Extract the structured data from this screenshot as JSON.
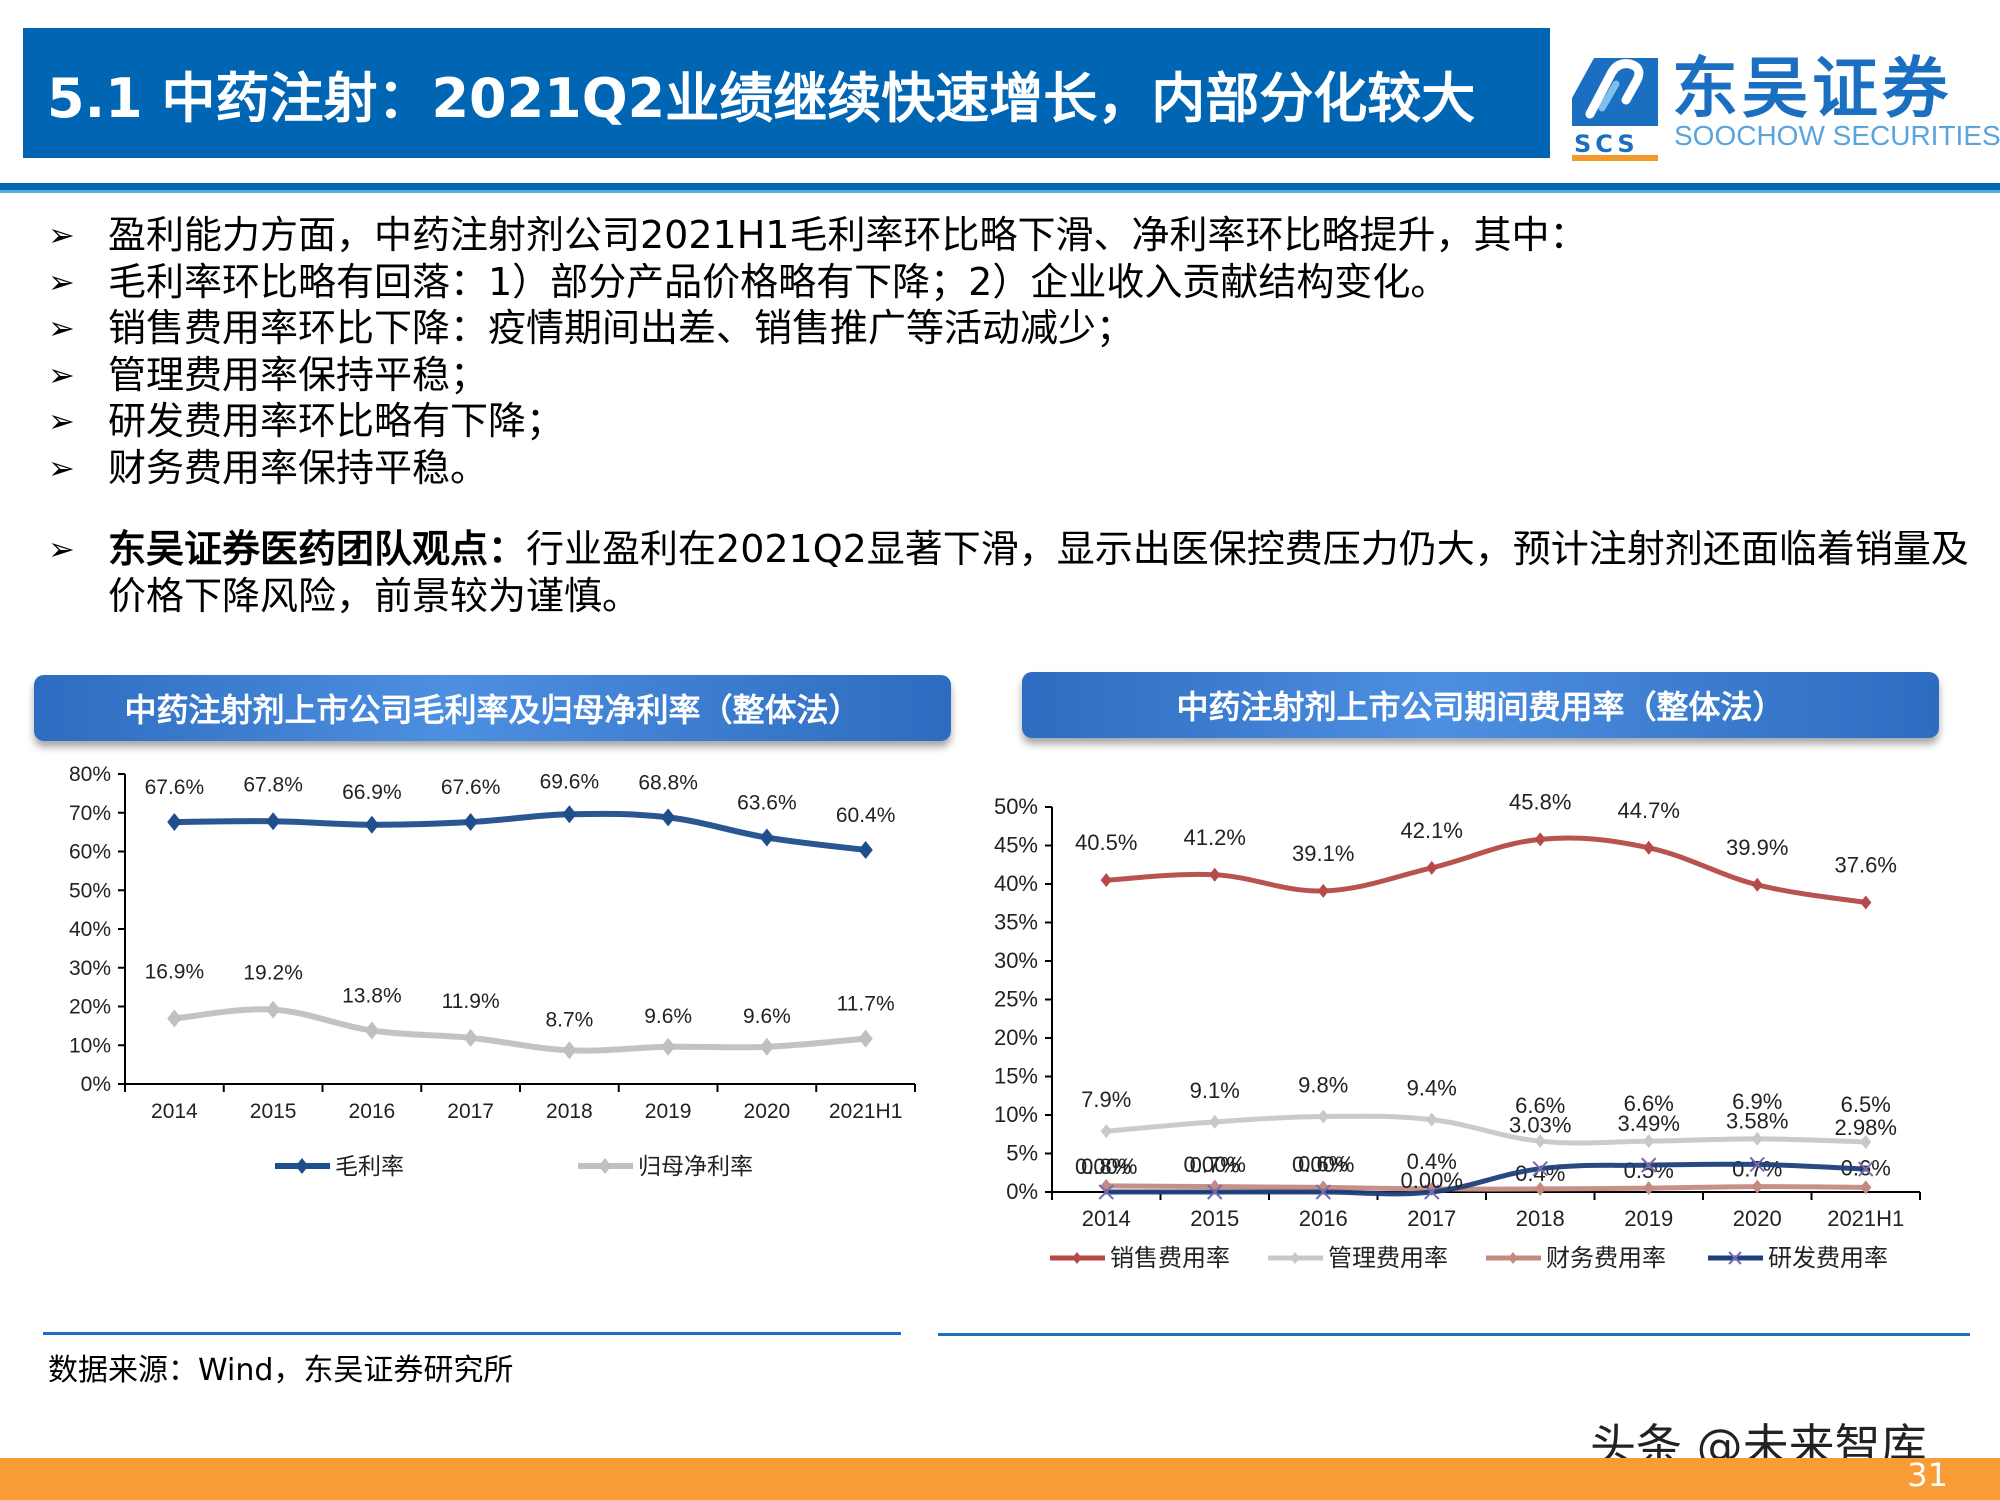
{
  "header": {
    "title": "5.1 中药注射：2021Q2业绩继续快速增长，内部分化较大"
  },
  "logo": {
    "mark_text": "SCS",
    "name_cn": "东吴证券",
    "name_en": "SOOCHOW SECURITIES",
    "brand_color": "#1b6fc0",
    "accent_color": "#f39a2c"
  },
  "bullets": [
    {
      "text": "盈利能力方面，中药注射剂公司2021H1毛利率环比略下滑、净利率环比略提升，其中："
    },
    {
      "text": "毛利率环比略有回落：1）部分产品价格略有下降；2）企业收入贡献结构变化。"
    },
    {
      "text": "销售费用率环比下降：疫情期间出差、销售推广等活动减少；"
    },
    {
      "text": "管理费用率保持平稳；"
    },
    {
      "text": "研发费用率环比略有下降；"
    },
    {
      "text": "财务费用率保持平稳。"
    }
  ],
  "view": {
    "label": "东吴证券医药团队观点：",
    "text": "行业盈利在2021Q2显著下滑，显示出医保控费压力仍大，预计注射剂还面临着销量及价格下降风险，前景较为谨慎。"
  },
  "panels": {
    "left_title": "中药注射剂上市公司毛利率及归母净利率（整体法）",
    "right_title": "中药注射剂上市公司期间费用率（整体法）"
  },
  "chart_data": [
    {
      "type": "line",
      "title": "中药注射剂上市公司毛利率及归母净利率（整体法）",
      "categories": [
        "2014",
        "2015",
        "2016",
        "2017",
        "2018",
        "2019",
        "2020",
        "2021H1"
      ],
      "series": [
        {
          "name": "毛利率",
          "color": "#1f4e8c",
          "marker": "diamond",
          "values": [
            67.6,
            67.8,
            66.9,
            67.6,
            69.6,
            68.8,
            63.6,
            60.4
          ],
          "labels": [
            "67.6%",
            "67.8%",
            "66.9%",
            "67.6%",
            "69.6%",
            "68.8%",
            "63.6%",
            "60.4%"
          ]
        },
        {
          "name": "归母净利率",
          "color": "#c0c0c0",
          "marker": "diamond",
          "values": [
            16.9,
            19.2,
            13.8,
            11.9,
            8.7,
            9.6,
            9.6,
            11.7
          ],
          "labels": [
            "16.9%",
            "19.2%",
            "13.8%",
            "11.9%",
            "8.7%",
            "9.6%",
            "9.6%",
            "11.7%"
          ]
        }
      ],
      "yticks": [
        "0%",
        "10%",
        "20%",
        "30%",
        "40%",
        "50%",
        "60%",
        "70%",
        "80%"
      ],
      "ylim": [
        0,
        80
      ],
      "xlabel": "",
      "ylabel": "",
      "grid": false,
      "legend_position": "bottom"
    },
    {
      "type": "line",
      "title": "中药注射剂上市公司期间费用率（整体法）",
      "categories": [
        "2014",
        "2015",
        "2016",
        "2017",
        "2018",
        "2019",
        "2020",
        "2021H1"
      ],
      "series": [
        {
          "name": "销售费用率",
          "color": "#b54a48",
          "marker": "diamond",
          "values": [
            40.5,
            41.2,
            39.1,
            42.1,
            45.8,
            44.7,
            39.9,
            37.6
          ],
          "labels": [
            "40.5%",
            "41.2%",
            "39.1%",
            "42.1%",
            "45.8%",
            "44.7%",
            "39.9%",
            "37.6%"
          ]
        },
        {
          "name": "管理费用率",
          "color": "#c8c8c8",
          "marker": "diamond",
          "values": [
            7.9,
            9.1,
            9.8,
            9.4,
            6.6,
            6.6,
            6.9,
            6.5
          ],
          "labels": [
            "7.9%",
            "9.1%",
            "9.8%",
            "9.4%",
            "6.6%",
            "6.6%",
            "6.9%",
            "6.5%"
          ]
        },
        {
          "name": "财务费用率",
          "color": "#c48a80",
          "marker": "diamond",
          "values": [
            0.8,
            0.7,
            0.6,
            0.4,
            0.4,
            0.5,
            0.7,
            0.6
          ],
          "labels": [
            "0.8%",
            "0.7%",
            "0.6%",
            "0.4%",
            "0.4%",
            "0.5%",
            "0.7%",
            "0.6%"
          ]
        },
        {
          "name": "研发费用率",
          "color": "#1f3f7a",
          "marker": "x",
          "values": [
            0.0,
            0.0,
            0.0,
            0.0,
            3.03,
            3.49,
            3.58,
            2.98
          ],
          "labels": [
            "0.00%",
            "0.00%",
            "0.00%",
            "0.00%",
            "3.03%",
            "3.49%",
            "3.58%",
            "2.98%"
          ]
        }
      ],
      "yticks": [
        "0%",
        "5%",
        "10%",
        "15%",
        "20%",
        "25%",
        "30%",
        "35%",
        "40%",
        "45%",
        "50%"
      ],
      "ylim": [
        0,
        50
      ],
      "xlabel": "",
      "ylabel": "",
      "grid": false,
      "legend_position": "bottom"
    }
  ],
  "source": "数据来源：Wind，东吴证券研究所",
  "watermark": "头条 @未来智库",
  "footer": {
    "page_number": "31"
  }
}
